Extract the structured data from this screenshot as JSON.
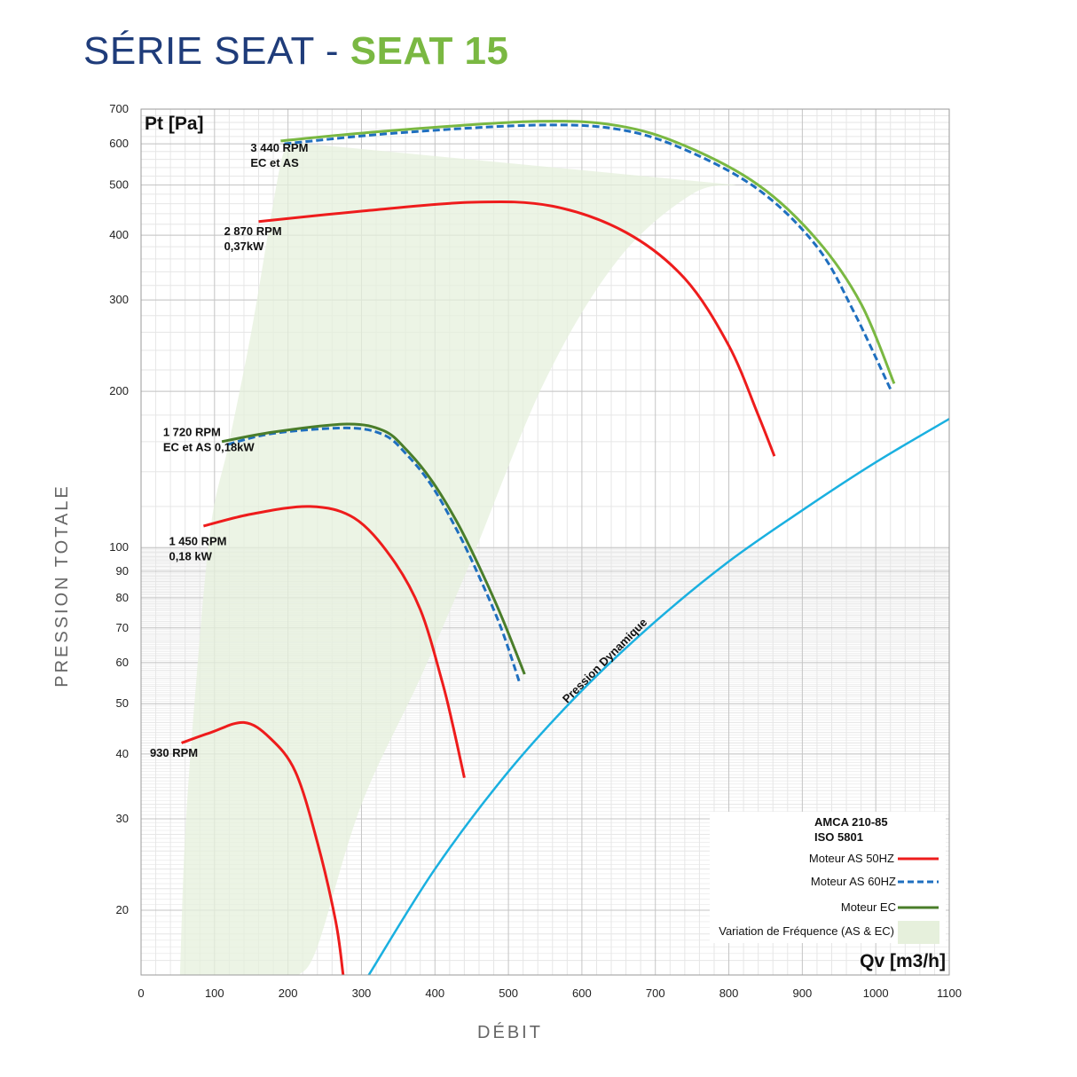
{
  "title": {
    "prefix": "SÉRIE SEAT - ",
    "model": "SEAT 15"
  },
  "colors": {
    "title_prefix": "#1f3c7a",
    "title_model": "#7ab842",
    "as50": "#ee1c1c",
    "as60": "#1f6fbf",
    "ec": "#4a7d2a",
    "ec_top": "#7ab842",
    "dynamic": "#1ab0e0",
    "band": "#e6f0dc",
    "grid_major": "#c4c4c4",
    "grid_minor": "#e6e6e6"
  },
  "chart_data": {
    "type": "line",
    "xlabel": "DÉBIT",
    "ylabel": "PRESSION TOTALE",
    "x_unit": "Qv [m3/h]",
    "y_unit": "Pt [Pa]",
    "x_range": [
      0,
      1100
    ],
    "y_range": [
      15,
      700
    ],
    "y_scale": "log",
    "x_ticks": [
      0,
      100,
      200,
      300,
      400,
      500,
      600,
      700,
      800,
      900,
      1000,
      1100
    ],
    "y_ticks": [
      20,
      30,
      40,
      50,
      60,
      70,
      80,
      90,
      100,
      200,
      300,
      400,
      500,
      600,
      700
    ],
    "grid": true,
    "legend_position": "bottom-right",
    "legend": {
      "standard_1": "AMCA 210-85",
      "standard_2": "ISO 5801",
      "items": [
        {
          "key": "as50",
          "label": "Moteur AS 50HZ",
          "style": "solid"
        },
        {
          "key": "as60",
          "label": "Moteur AS 60HZ",
          "style": "dashed"
        },
        {
          "key": "ec",
          "label": "Moteur EC",
          "style": "solid"
        },
        {
          "key": "band",
          "label": "Variation de Fréquence (AS & EC)",
          "style": "area"
        }
      ]
    },
    "band": {
      "name": "Variation de Fréquence (AS & EC)",
      "upper": [
        [
          53,
          15
        ],
        [
          60,
          28
        ],
        [
          75,
          55
        ],
        [
          95,
          110
        ],
        [
          120,
          160
        ],
        [
          150,
          260
        ],
        [
          175,
          420
        ],
        [
          190,
          550
        ],
        [
          200,
          605
        ]
      ],
      "lower": [
        [
          215,
          15
        ],
        [
          240,
          17
        ],
        [
          300,
          32
        ],
        [
          380,
          56
        ],
        [
          450,
          95
        ],
        [
          550,
          210
        ],
        [
          650,
          360
        ],
        [
          750,
          480
        ],
        [
          810,
          500
        ]
      ]
    },
    "series": [
      {
        "name": "930 RPM",
        "motor": "as50",
        "style": "solid",
        "points": [
          [
            55,
            42
          ],
          [
            95,
            44
          ],
          [
            140,
            46
          ],
          [
            175,
            43
          ],
          [
            210,
            37
          ],
          [
            240,
            27
          ],
          [
            265,
            19
          ],
          [
            275,
            15
          ]
        ]
      },
      {
        "name": "1 450 RPM",
        "motor": "as50",
        "style": "solid",
        "points": [
          [
            85,
            110
          ],
          [
            150,
            116
          ],
          [
            230,
            120
          ],
          [
            290,
            114
          ],
          [
            340,
            96
          ],
          [
            380,
            76
          ],
          [
            410,
            55
          ],
          [
            425,
            45
          ],
          [
            440,
            36
          ]
        ]
      },
      {
        "name": "1 720 RPM",
        "motor": "as60",
        "style": "dashed",
        "points": [
          [
            118,
            158
          ],
          [
            180,
            166
          ],
          [
            280,
            170
          ],
          [
            330,
            165
          ],
          [
            360,
            152
          ],
          [
            395,
            132
          ],
          [
            430,
            108
          ],
          [
            460,
            88
          ],
          [
            490,
            70
          ],
          [
            515,
            55
          ]
        ]
      },
      {
        "name": "1 720 RPM",
        "motor": "ec",
        "style": "solid",
        "points": [
          [
            110,
            160
          ],
          [
            180,
            167
          ],
          [
            280,
            173
          ],
          [
            330,
            168
          ],
          [
            360,
            155
          ],
          [
            395,
            135
          ],
          [
            430,
            112
          ],
          [
            460,
            92
          ],
          [
            490,
            74
          ],
          [
            522,
            57
          ]
        ]
      },
      {
        "name": "2 870 RPM",
        "motor": "as50",
        "style": "solid",
        "points": [
          [
            160,
            425
          ],
          [
            300,
            445
          ],
          [
            450,
            463
          ],
          [
            560,
            455
          ],
          [
            660,
            405
          ],
          [
            740,
            330
          ],
          [
            800,
            245
          ],
          [
            840,
            180
          ],
          [
            862,
            150
          ]
        ]
      },
      {
        "name": "3 440 RPM",
        "motor": "as60",
        "style": "dashed",
        "points": [
          [
            195,
            600
          ],
          [
            350,
            630
          ],
          [
            540,
            652
          ],
          [
            650,
            640
          ],
          [
            740,
            585
          ],
          [
            840,
            490
          ],
          [
            920,
            380
          ],
          [
            970,
            285
          ],
          [
            1020,
            202
          ]
        ]
      },
      {
        "name": "3 440 RPM",
        "motor": "ec",
        "style": "solid",
        "points": [
          [
            190,
            608
          ],
          [
            350,
            638
          ],
          [
            540,
            663
          ],
          [
            650,
            650
          ],
          [
            740,
            595
          ],
          [
            840,
            500
          ],
          [
            920,
            392
          ],
          [
            980,
            295
          ],
          [
            1025,
            207
          ]
        ]
      },
      {
        "name": "Pression Dynamique",
        "motor": "dynamic",
        "style": "solid",
        "points": [
          [
            310,
            15
          ],
          [
            400,
            24
          ],
          [
            500,
            37
          ],
          [
            600,
            53
          ],
          [
            700,
            72
          ],
          [
            800,
            94
          ],
          [
            900,
            118
          ],
          [
            1000,
            146
          ],
          [
            1100,
            177
          ]
        ]
      }
    ],
    "labels": [
      {
        "lines": [
          "930 RPM"
        ],
        "anchor": [
          12,
          39.5
        ]
      },
      {
        "lines": [
          "1 450 RPM",
          "0,18 kW"
        ],
        "anchor": [
          38,
          101
        ]
      },
      {
        "lines": [
          "1 720 RPM",
          "EC et AS 0,18kW"
        ],
        "anchor": [
          30,
          164
        ]
      },
      {
        "lines": [
          "2 870 RPM",
          "0,37kW"
        ],
        "anchor": [
          113,
          400
        ]
      },
      {
        "lines": [
          "3 440 RPM",
          "EC et AS"
        ],
        "anchor": [
          149,
          580
        ]
      },
      {
        "lines": [
          "Pression Dynamique"
        ],
        "anchor": [
          580,
          50
        ],
        "rotate": -45
      }
    ]
  }
}
